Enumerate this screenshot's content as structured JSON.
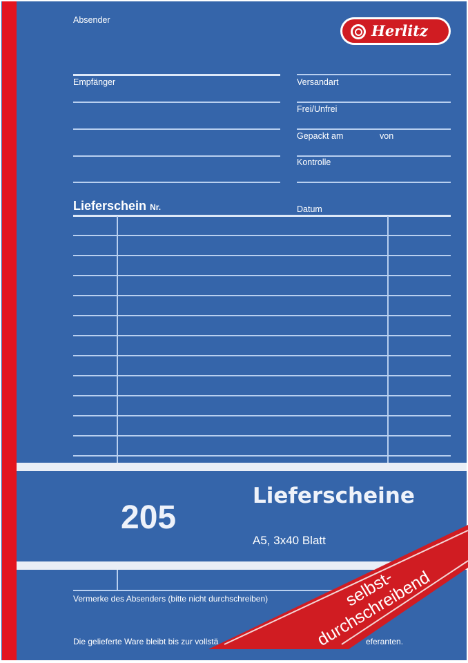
{
  "brand": {
    "logo_text": "Herlitz",
    "color": "#d01c22"
  },
  "form": {
    "absender": "Absender",
    "empfaenger": "Empfänger",
    "versandart": "Versandart",
    "frei_unfrei": "Frei/Unfrei",
    "gepackt_am": "Gepackt am",
    "von": "von",
    "kontrolle": "Kontrolle",
    "lieferschein": "Lieferschein",
    "nr": "Nr.",
    "datum": "Datum",
    "vermerke": "Vermerke des Absenders (bitte nicht durchschreiben)",
    "footer_left": "Die gelieferte Ware bleibt bis zur vollstä",
    "footer_right": "eferanten."
  },
  "product": {
    "number": "205",
    "title": "Lieferscheine",
    "format": "A5, 3x40 Blatt",
    "ribbon_line1": "selbst-",
    "ribbon_line2": "durchschreibend"
  },
  "colors": {
    "cover": "#3565aa",
    "stripe": "#e3141f",
    "ribbon": "#d01c22"
  }
}
